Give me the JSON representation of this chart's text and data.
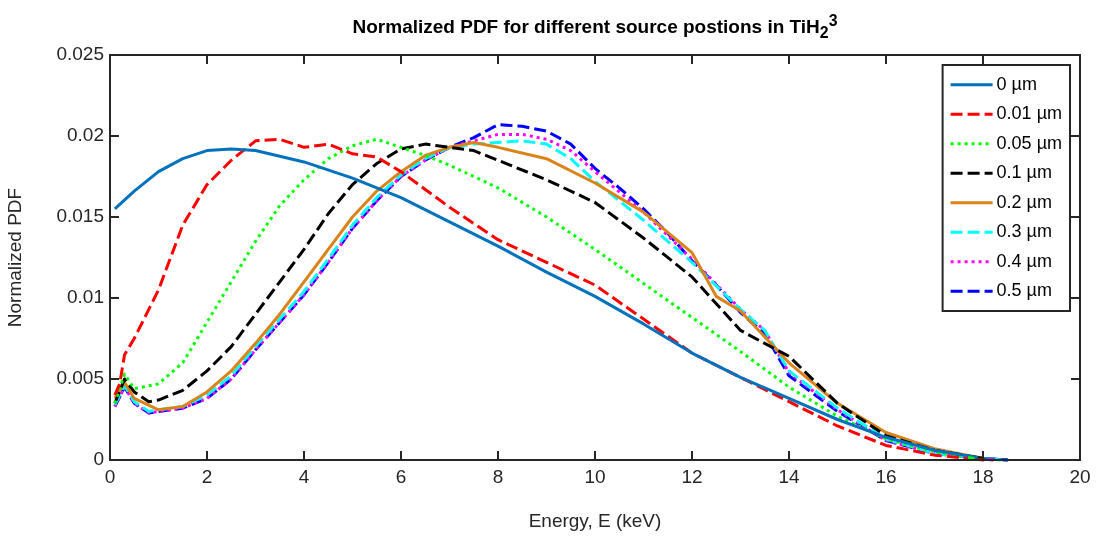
{
  "chart_data": {
    "type": "line",
    "title": "Normalized PDF for different source postions in TiH$_{2}$$^{3}$",
    "xlabel": "Energy, E (keV)",
    "ylabel": "Normalized PDF",
    "xlim": [
      0,
      20
    ],
    "xticks": [
      0,
      2,
      4,
      6,
      8,
      10,
      12,
      14,
      16,
      18,
      20
    ],
    "ylim": [
      0,
      0.025
    ],
    "yticks": [
      0,
      0.005,
      0.01,
      0.015,
      0.02,
      0.025
    ],
    "grid": false,
    "legend": "top right",
    "marker": "none",
    "series": [
      {
        "name": "0 µm",
        "color": "#0072bd",
        "line_style": "solid",
        "x": [
          0.1,
          0.5,
          1,
          1.5,
          2,
          2.5,
          3,
          4,
          5,
          6,
          7,
          8,
          9,
          10,
          11,
          12,
          13,
          14,
          15,
          16,
          17,
          18,
          18.5
        ],
        "values": [
          0.0155,
          0.0166,
          0.0178,
          0.0186,
          0.0191,
          0.0192,
          0.0191,
          0.0184,
          0.0174,
          0.0162,
          0.0147,
          0.0132,
          0.0116,
          0.0101,
          0.0084,
          0.0066,
          0.0051,
          0.0038,
          0.0025,
          0.0014,
          0.0006,
          0.0001,
          0
        ]
      },
      {
        "name": "0.01 µm",
        "color": "#ff0000",
        "line_style": "dashed",
        "x": [
          0.1,
          0.2,
          0.3,
          0.5,
          1,
          1.5,
          2,
          2.5,
          3,
          3.5,
          4,
          4.5,
          5,
          5.5,
          6,
          6.5,
          7,
          8,
          9,
          10,
          11,
          12,
          13,
          14,
          15,
          16,
          17,
          18
        ],
        "values": [
          0.004,
          0.0047,
          0.0065,
          0.0075,
          0.0105,
          0.0145,
          0.017,
          0.0185,
          0.0197,
          0.0198,
          0.0193,
          0.0195,
          0.0189,
          0.0187,
          0.0178,
          0.0167,
          0.0156,
          0.0136,
          0.0122,
          0.0108,
          0.0087,
          0.0066,
          0.0051,
          0.0036,
          0.0021,
          0.0009,
          0.0003,
          0
        ]
      },
      {
        "name": "0.05 µm",
        "color": "#00ff00",
        "line_style": "dotted",
        "x": [
          0.1,
          0.3,
          0.5,
          1,
          1.5,
          2,
          2.5,
          3,
          3.5,
          4,
          4.5,
          5,
          5.5,
          6,
          6.5,
          7,
          7.5,
          8,
          9,
          10,
          11,
          12,
          13,
          14,
          15,
          16,
          17,
          17.8
        ],
        "values": [
          0.0035,
          0.0053,
          0.0044,
          0.0047,
          0.006,
          0.0085,
          0.011,
          0.0135,
          0.0157,
          0.0173,
          0.0186,
          0.0194,
          0.0198,
          0.0193,
          0.0188,
          0.0182,
          0.0175,
          0.0168,
          0.015,
          0.013,
          0.0109,
          0.0088,
          0.0067,
          0.0045,
          0.0027,
          0.0013,
          0.0005,
          0.0001
        ]
      },
      {
        "name": "0.1 µm",
        "color": "#000000",
        "line_style": "dashed",
        "x": [
          0.1,
          0.3,
          0.5,
          0.8,
          1,
          1.5,
          2,
          2.5,
          3,
          3.5,
          4,
          4.5,
          5,
          5.5,
          6,
          6.5,
          7,
          7.5,
          8,
          9,
          10,
          11,
          12,
          13,
          14,
          15,
          16,
          17,
          18
        ],
        "values": [
          0.0035,
          0.005,
          0.0042,
          0.0036,
          0.0037,
          0.0043,
          0.0055,
          0.007,
          0.009,
          0.011,
          0.013,
          0.0152,
          0.017,
          0.0183,
          0.0192,
          0.0195,
          0.0193,
          0.0191,
          0.0185,
          0.0173,
          0.0159,
          0.0137,
          0.0113,
          0.008,
          0.0064,
          0.0035,
          0.0015,
          0.0006,
          0.0001
        ]
      },
      {
        "name": "0.2 µm",
        "color": "#d98319",
        "line_style": "solid",
        "x": [
          0.1,
          0.3,
          0.5,
          1,
          1.5,
          2,
          2.5,
          3,
          3.5,
          4,
          4.5,
          5,
          5.5,
          6,
          6.5,
          7,
          7.5,
          8,
          9,
          10,
          11,
          12,
          12.5,
          13,
          14,
          15,
          16,
          17,
          18
        ],
        "values": [
          0.0038,
          0.0048,
          0.0038,
          0.0031,
          0.0033,
          0.0042,
          0.0055,
          0.0072,
          0.009,
          0.011,
          0.013,
          0.015,
          0.0166,
          0.0178,
          0.0188,
          0.0193,
          0.0196,
          0.0193,
          0.0186,
          0.0171,
          0.0153,
          0.0128,
          0.0101,
          0.0092,
          0.006,
          0.0035,
          0.0017,
          0.0007,
          0.0001
        ]
      },
      {
        "name": "0.3 µm",
        "color": "#00ffff",
        "line_style": "dashed",
        "x": [
          0.1,
          0.3,
          0.5,
          0.8,
          1,
          1.5,
          2,
          2.5,
          3,
          3.5,
          4,
          4.5,
          5,
          5.5,
          6,
          6.5,
          7,
          7.5,
          8,
          8.5,
          9,
          9.5,
          10,
          11,
          12,
          13,
          13.5,
          14,
          15,
          16,
          17,
          18.35
        ],
        "values": [
          0.0034,
          0.0046,
          0.0036,
          0.003,
          0.0031,
          0.0033,
          0.004,
          0.0052,
          0.007,
          0.0087,
          0.0104,
          0.0124,
          0.0145,
          0.0162,
          0.0176,
          0.0186,
          0.0193,
          0.0195,
          0.0196,
          0.0197,
          0.0195,
          0.0186,
          0.0172,
          0.0148,
          0.0122,
          0.0093,
          0.008,
          0.0055,
          0.0032,
          0.0013,
          0.0004,
          0
        ]
      },
      {
        "name": "0.4 µm",
        "color": "#ff00ff",
        "line_style": "dotted",
        "x": [
          0.1,
          0.3,
          0.5,
          0.8,
          1,
          1.5,
          2,
          2.5,
          3,
          3.5,
          4,
          4.5,
          5,
          5.5,
          6,
          6.5,
          7,
          7.5,
          8,
          8.5,
          9,
          9.5,
          10,
          11,
          12,
          13,
          13.5,
          14,
          15,
          16,
          17,
          18.2
        ],
        "values": [
          0.0033,
          0.0045,
          0.0035,
          0.0029,
          0.003,
          0.0032,
          0.0038,
          0.005,
          0.0068,
          0.0085,
          0.0102,
          0.0122,
          0.0143,
          0.016,
          0.0175,
          0.0185,
          0.0193,
          0.0197,
          0.0201,
          0.0201,
          0.0198,
          0.0191,
          0.0178,
          0.0153,
          0.0124,
          0.0093,
          0.008,
          0.0054,
          0.0031,
          0.0012,
          0.0004,
          0
        ]
      },
      {
        "name": "0.5 µm",
        "color": "#0000ff",
        "line_style": "dashed",
        "x": [
          0.1,
          0.3,
          0.5,
          0.8,
          1,
          1.5,
          2,
          2.5,
          3,
          3.5,
          4,
          4.5,
          5,
          5.5,
          6,
          6.5,
          7,
          7.5,
          8,
          8.5,
          9,
          9.5,
          10,
          10.5,
          11,
          11.5,
          12,
          12.5,
          13,
          13.5,
          14,
          15,
          16,
          17,
          18,
          18.5
        ],
        "values": [
          0.0033,
          0.0045,
          0.0035,
          0.0029,
          0.003,
          0.0032,
          0.0038,
          0.005,
          0.0068,
          0.0085,
          0.0102,
          0.0122,
          0.0143,
          0.016,
          0.0175,
          0.0185,
          0.0193,
          0.0199,
          0.0207,
          0.0206,
          0.0203,
          0.0195,
          0.018,
          0.0168,
          0.0155,
          0.014,
          0.0123,
          0.0108,
          0.0091,
          0.0078,
          0.0052,
          0.003,
          0.0012,
          0.0004,
          0.0001,
          0
        ]
      }
    ]
  }
}
